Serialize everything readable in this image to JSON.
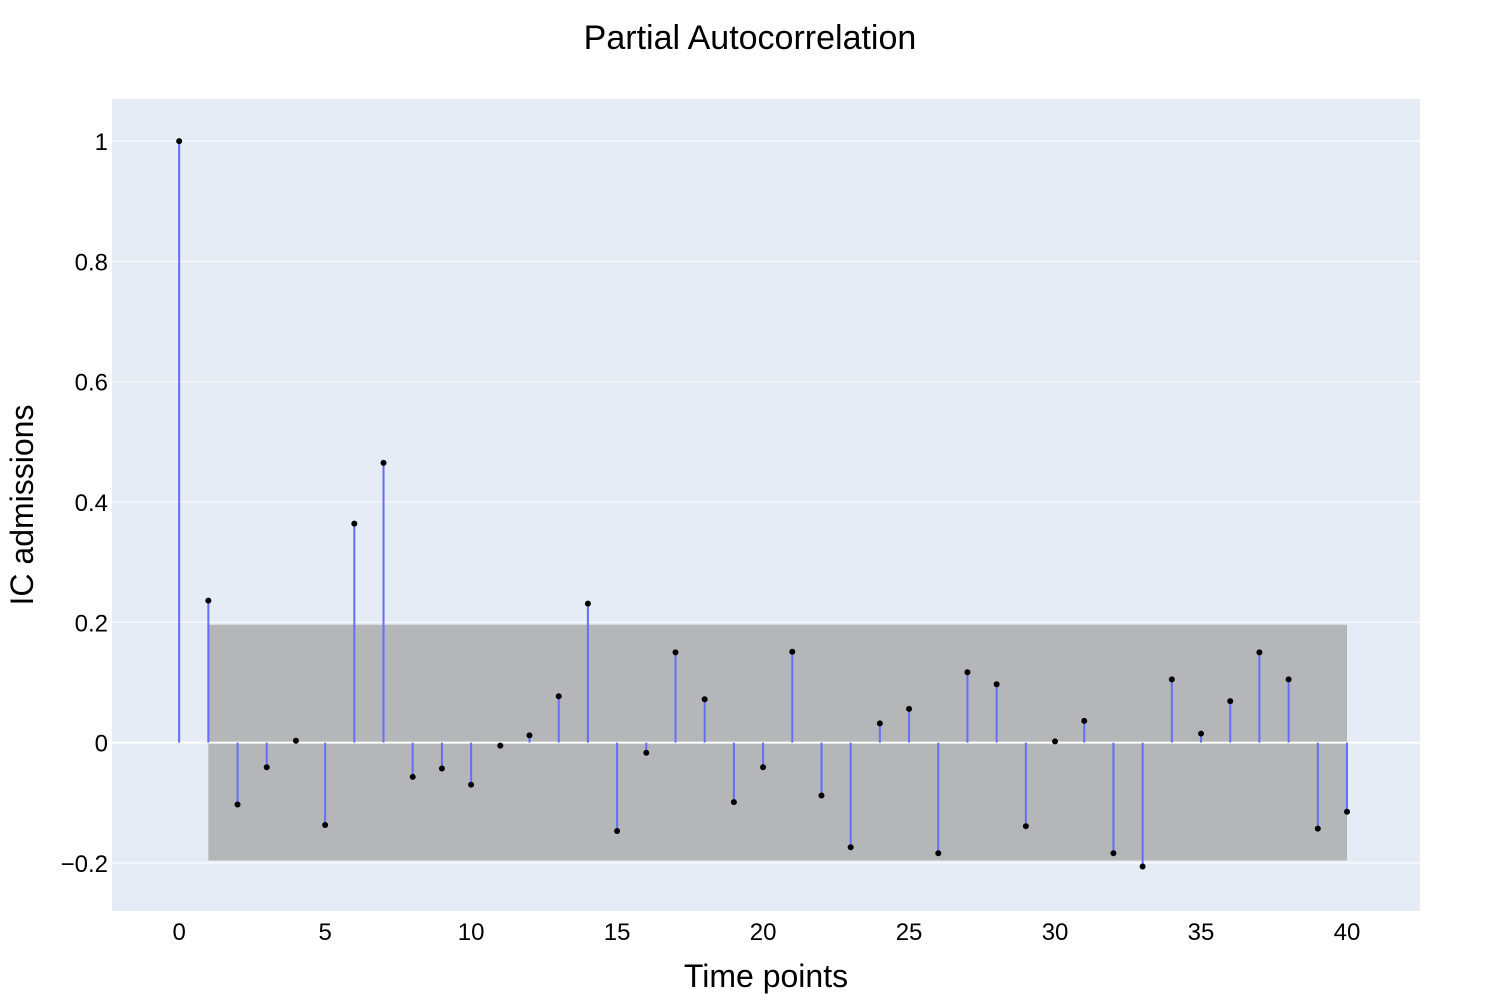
{
  "chart_data": {
    "type": "scatter",
    "title": "Partial Autocorrelation",
    "xlabel": "Time points",
    "ylabel": "IC admissions",
    "xlim": [
      -2.3,
      42.5
    ],
    "ylim": [
      -0.28,
      1.07
    ],
    "x_ticks": [
      0,
      5,
      10,
      15,
      20,
      25,
      30,
      35,
      40
    ],
    "x_tick_labels": [
      "0",
      "5",
      "10",
      "15",
      "20",
      "25",
      "30",
      "35",
      "40"
    ],
    "y_ticks": [
      -0.2,
      0,
      0.2,
      0.4,
      0.6,
      0.8,
      1
    ],
    "y_tick_labels": [
      "−0.2",
      "0",
      "0.2",
      "0.4",
      "0.6",
      "0.8",
      "1"
    ],
    "grid": true,
    "legend": "none",
    "confidence_band": {
      "x_start": 1,
      "x_end": 40,
      "lower": -0.196,
      "upper": 0.196
    },
    "x": [
      0,
      1,
      2,
      3,
      4,
      5,
      6,
      7,
      8,
      9,
      10,
      11,
      12,
      13,
      14,
      15,
      16,
      17,
      18,
      19,
      20,
      21,
      22,
      23,
      24,
      25,
      26,
      27,
      28,
      29,
      30,
      31,
      32,
      33,
      34,
      35,
      36,
      37,
      38,
      39,
      40
    ],
    "values": [
      1.0,
      0.236,
      -0.103,
      -0.041,
      0.003,
      -0.137,
      0.364,
      0.465,
      -0.057,
      -0.043,
      -0.07,
      -0.005,
      0.012,
      0.077,
      0.231,
      -0.147,
      -0.017,
      0.15,
      0.072,
      -0.099,
      -0.041,
      0.151,
      -0.088,
      -0.174,
      0.032,
      0.056,
      -0.184,
      0.117,
      0.097,
      -0.139,
      0.002,
      0.036,
      -0.184,
      -0.206,
      0.105,
      0.015,
      0.069,
      0.15,
      0.105,
      -0.143,
      -0.115
    ],
    "colors": {
      "plot_background": "#e5ecf6",
      "grid": "#ffffff",
      "stem": "#636efa",
      "marker": "#000000",
      "band": "#a9a9a9",
      "zero_line": "#ffffff"
    }
  }
}
